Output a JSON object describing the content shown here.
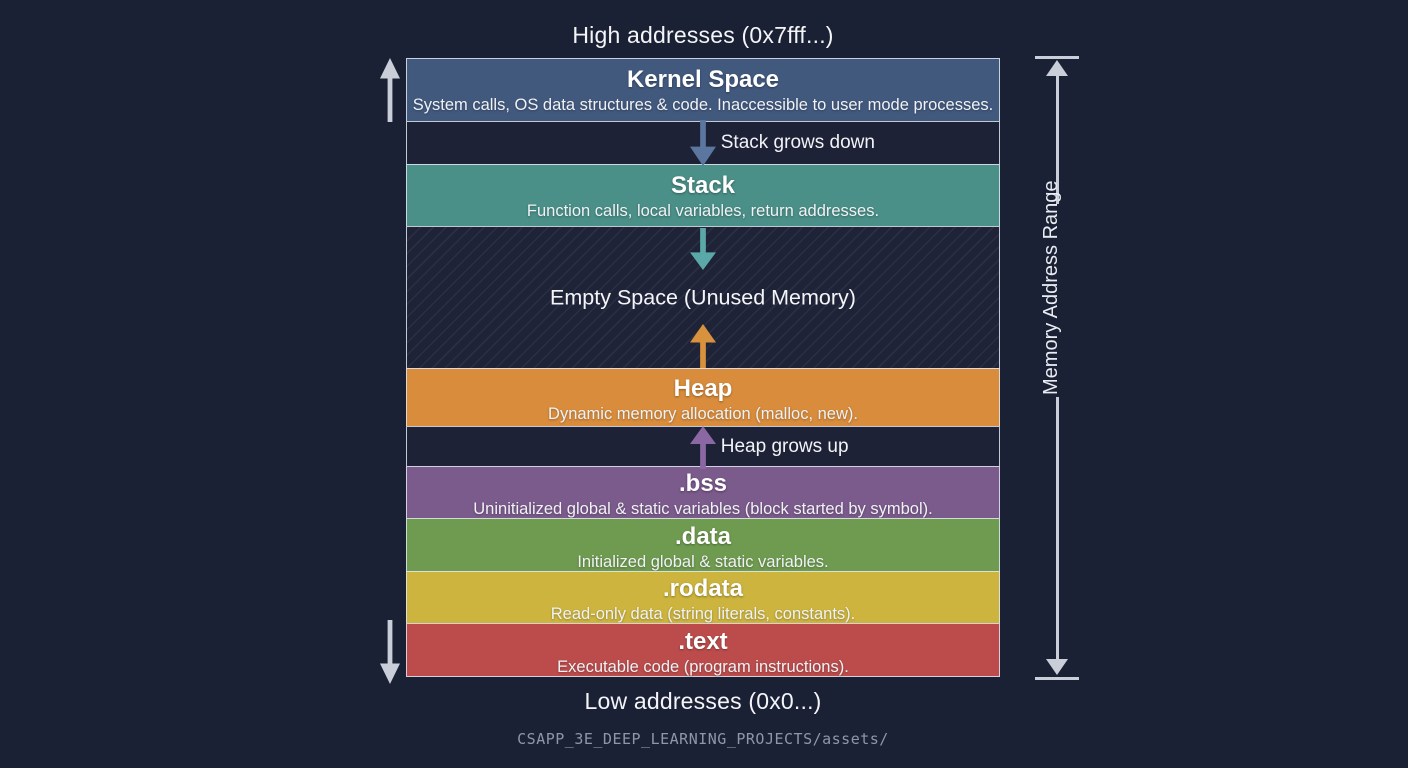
{
  "header": {
    "high_label": "High addresses (0x7fff...)"
  },
  "footer": {
    "low_label": "Low addresses (0x0...)",
    "path": "CSAPP_3E_DEEP_LEARNING_PROJECTS/assets/"
  },
  "right_axis": {
    "label": "Memory Address Range"
  },
  "segments": {
    "kernel": {
      "title": "Kernel Space",
      "desc": "System calls, OS data structures & code. Inaccessible to user mode processes."
    },
    "stack_band": {
      "label": "Stack grows down"
    },
    "stack": {
      "title": "Stack",
      "desc": "Function calls, local variables, return addresses."
    },
    "empty": {
      "title": "Empty Space (Unused Memory)"
    },
    "heap": {
      "title": "Heap",
      "desc": "Dynamic memory allocation (malloc, new)."
    },
    "heap_band": {
      "label": "Heap grows up"
    },
    "bss": {
      "title": ".bss",
      "desc": "Uninitialized global & static variables (block started by symbol)."
    },
    "data": {
      "title": ".data",
      "desc": "Initialized global & static variables."
    },
    "rodata": {
      "title": ".rodata",
      "desc": "Read-only data (string literals, constants)."
    },
    "text": {
      "title": ".text",
      "desc": "Executable code (program instructions)."
    }
  },
  "colors": {
    "background": "#1b2134",
    "kernel": "#42597e",
    "stack": "#4a8f88",
    "heap": "#d88c3c",
    "bss": "#7b5a8c",
    "data": "#6f9b50",
    "rodata": "#ccb43e",
    "text_segment": "#bc4c4c",
    "band_background": "#1d2236",
    "empty_background": "#1e2337",
    "stack_arrow": "#5b779f",
    "empty_down_arrow": "#5ba8a8",
    "empty_up_arrow": "#d8913d",
    "heap_arrow": "#8b68a3",
    "axis_arrow": "#c9ced9"
  }
}
